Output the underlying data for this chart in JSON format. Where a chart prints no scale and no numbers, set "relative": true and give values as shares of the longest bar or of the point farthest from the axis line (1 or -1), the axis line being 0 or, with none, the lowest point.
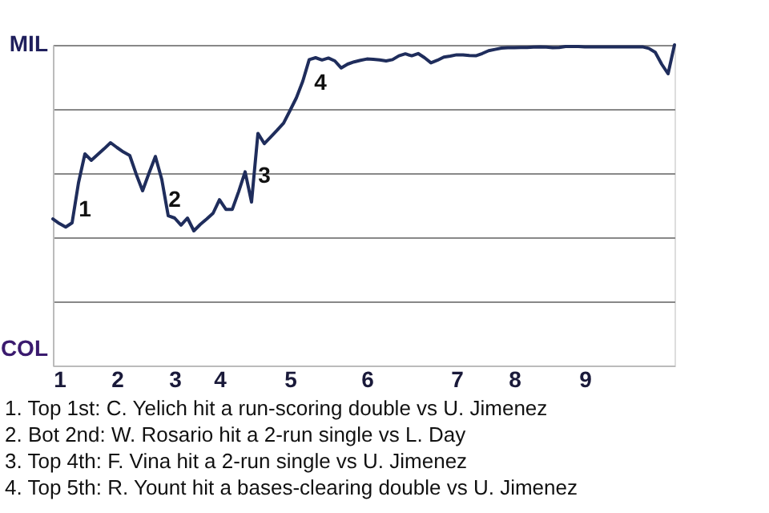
{
  "chart_data": {
    "type": "line",
    "relative": true,
    "categories": [
      null,
      "1",
      null,
      null,
      null,
      null,
      null,
      null,
      null,
      null,
      "2",
      null,
      null,
      null,
      null,
      null,
      null,
      null,
      null,
      "3",
      null,
      null,
      null,
      null,
      null,
      null,
      "4",
      null,
      null,
      null,
      null,
      null,
      null,
      null,
      null,
      null,
      null,
      "5",
      null,
      null,
      null,
      null,
      null,
      null,
      null,
      null,
      null,
      null,
      null,
      "6",
      null,
      null,
      null,
      null,
      null,
      null,
      null,
      null,
      null,
      null,
      null,
      null,
      null,
      "7",
      null,
      null,
      null,
      null,
      null,
      null,
      null,
      null,
      "8",
      null,
      null,
      null,
      null,
      null,
      null,
      null,
      null,
      null,
      null,
      "9",
      null,
      null,
      null,
      null,
      null,
      null,
      null,
      null,
      null,
      null,
      null,
      null,
      null,
      null
    ],
    "series": [
      {
        "color": "#1f2d5c",
        "values": [
          0.457,
          0.443,
          0.432,
          0.445,
          0.57,
          0.66,
          0.64,
          0.658,
          0.676,
          0.695,
          0.68,
          0.666,
          0.655,
          0.597,
          0.545,
          0.6,
          0.652,
          0.58,
          0.467,
          0.46,
          0.438,
          0.46,
          0.42,
          0.44,
          0.457,
          0.475,
          0.517,
          0.487,
          0.487,
          0.543,
          0.604,
          0.51,
          0.724,
          0.692,
          0.713,
          0.734,
          0.756,
          0.795,
          0.835,
          0.887,
          0.954,
          0.96,
          0.953,
          0.959,
          0.95,
          0.928,
          0.94,
          0.947,
          0.952,
          0.956,
          0.955,
          0.953,
          0.95,
          0.954,
          0.966,
          0.972,
          0.966,
          0.973,
          0.96,
          0.944,
          0.952,
          0.962,
          0.965,
          0.969,
          0.969,
          0.967,
          0.966,
          0.973,
          0.982,
          0.986,
          0.99,
          0.991,
          0.991,
          0.992,
          0.992,
          0.993,
          0.994,
          0.993,
          0.991,
          0.992,
          0.995,
          0.995,
          0.995,
          0.994,
          0.994,
          0.994,
          0.994,
          0.994,
          0.994,
          0.994,
          0.994,
          0.994,
          0.994,
          0.989,
          0.977,
          0.94,
          0.91,
          1
        ]
      }
    ],
    "grid": "y",
    "marker": "none",
    "annotations": [
      "MIL",
      "COL",
      "1",
      "2",
      "3",
      "4",
      "1. Top 1st: C. Yelich hit a run-scoring double vs U. Jimenez",
      "2. Bot 2nd: W. Rosario hit a 2-run single vs L. Day",
      "3. Top 4th: F. Vina hit a 2-run single vs U. Jimenez",
      "4. Top 5th: R. Yount hit a bases-clearing double vs U. Jimenez"
    ]
  }
}
